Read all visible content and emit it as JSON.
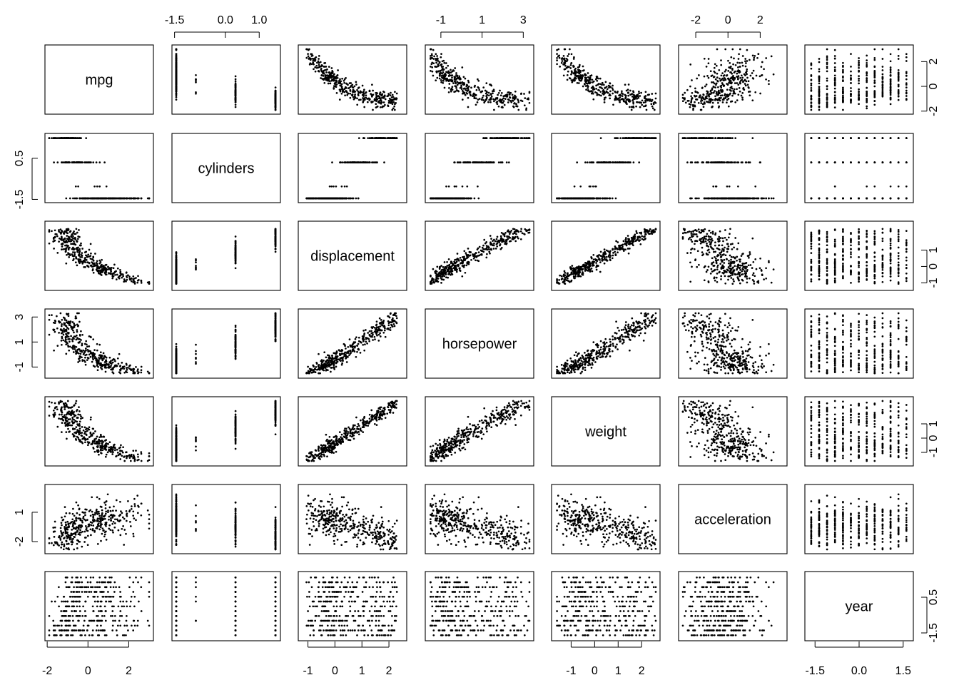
{
  "chart_data": {
    "type": "scatter",
    "variables": [
      "mpg",
      "cylinders",
      "displacement",
      "horsepower",
      "weight",
      "acceleration",
      "year"
    ],
    "axis_ranges": {
      "mpg": [
        -1.9,
        3.0
      ],
      "cylinders": [
        -1.45,
        1.5
      ],
      "displacement": [
        -1.2,
        2.5
      ],
      "horsepower": [
        -1.55,
        3.3
      ],
      "weight": [
        -1.65,
        2.6
      ],
      "acceleration": [
        -2.8,
        3.4
      ],
      "year": [
        -1.7,
        1.7
      ]
    },
    "axes": {
      "top": [
        {
          "var": "cylinders",
          "ticks": [
            -1.5,
            0.0,
            1.0
          ],
          "labels": [
            "-1.5",
            "0.0",
            "1.0"
          ]
        },
        {
          "var": "horsepower",
          "ticks": [
            -1,
            1,
            3
          ],
          "labels": [
            "-1",
            "1",
            "3"
          ]
        },
        {
          "var": "acceleration",
          "ticks": [
            -2,
            0,
            2
          ],
          "labels": [
            "-2",
            "0",
            "2"
          ]
        }
      ],
      "bottom": [
        {
          "var": "mpg",
          "ticks": [
            -2,
            0,
            2
          ],
          "labels": [
            "-2",
            "0",
            "2"
          ]
        },
        {
          "var": "displacement",
          "ticks": [
            -1,
            0,
            1,
            2
          ],
          "labels": [
            "-1",
            "0",
            "1",
            "2"
          ]
        },
        {
          "var": "weight",
          "ticks": [
            -1,
            0,
            1,
            2
          ],
          "labels": [
            "-1",
            "0",
            "1",
            "2"
          ]
        },
        {
          "var": "year",
          "ticks": [
            -1.5,
            0.0,
            1.5
          ],
          "labels": [
            "-1.5",
            "0.0",
            "1.5"
          ]
        }
      ],
      "left": [
        {
          "var": "cylinders",
          "ticks": [
            -1.5,
            0.5
          ],
          "labels": [
            "-1.5",
            "0.5"
          ]
        },
        {
          "var": "horsepower",
          "ticks": [
            -1,
            1,
            3
          ],
          "labels": [
            "-1",
            "1",
            "3"
          ]
        },
        {
          "var": "acceleration",
          "ticks": [
            -2,
            1
          ],
          "labels": [
            "-2",
            "1"
          ]
        }
      ],
      "right": [
        {
          "var": "mpg",
          "ticks": [
            -2,
            0,
            2
          ],
          "labels": [
            "-2",
            "0",
            "2"
          ]
        },
        {
          "var": "displacement",
          "ticks": [
            -1,
            0,
            1
          ],
          "labels": [
            "-1",
            "0",
            "1"
          ]
        },
        {
          "var": "weight",
          "ticks": [
            -1,
            0,
            1
          ],
          "labels": [
            "-1",
            "0",
            "1"
          ]
        },
        {
          "var": "year",
          "ticks": [
            -1.5,
            0.5
          ],
          "labels": [
            "-1.5",
            "0.5"
          ]
        }
      ]
    },
    "point_color": "#000000",
    "grid": false,
    "legend": "none"
  }
}
